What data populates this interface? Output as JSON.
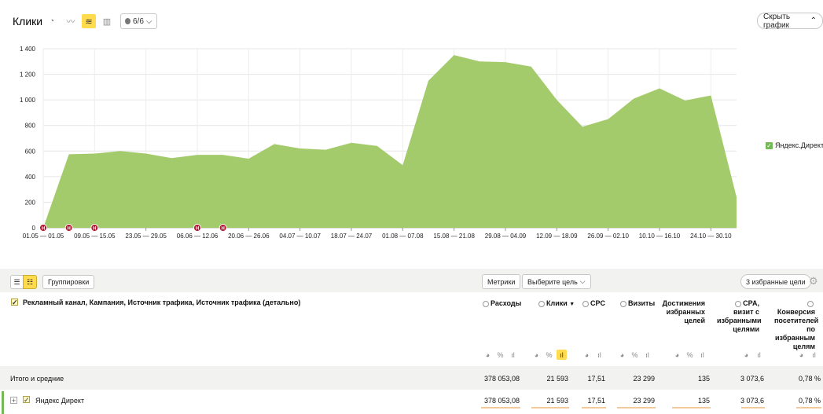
{
  "header": {
    "title": "Клики",
    "datasets_button": "6/6",
    "hide_chart_button": "Скрыть график"
  },
  "chart_data": {
    "type": "area",
    "ylim": [
      0,
      1400
    ],
    "yticks": [
      0,
      200,
      400,
      600,
      800,
      1000,
      1200,
      1400
    ],
    "ytick_labels": [
      "0",
      "200",
      "400",
      "600",
      "800",
      "1 000",
      "1 200",
      "1 400"
    ],
    "x_tick_labels": [
      "01.05 — 01.05",
      "09.05 — 15.05",
      "23.05 — 29.05",
      "06.06 — 12.06",
      "20.06 — 26.06",
      "04.07 — 10.07",
      "18.07 — 24.07",
      "01.08 — 07.08",
      "15.08 — 21.08",
      "29.08 — 04.09",
      "12.09 — 18.09",
      "26.09 — 02.10",
      "10.10 — 16.10",
      "24.10 — 30.10"
    ],
    "series": [
      {
        "name": "Яндекс.Директ",
        "color": "#a4cb6b",
        "values": [
          0,
          575,
          580,
          600,
          580,
          545,
          570,
          570,
          540,
          655,
          620,
          610,
          665,
          640,
          490,
          1150,
          1350,
          1300,
          1295,
          1260,
          1000,
          790,
          850,
          1010,
          1090,
          995,
          1035,
          240
        ]
      }
    ],
    "holiday_markers": {
      "label": "H",
      "color": "#b3132c",
      "points": [
        0,
        1,
        2,
        6,
        7
      ]
    },
    "grid": true,
    "legend": "right"
  },
  "legend": {
    "label": "Яндекс.Директ",
    "color": "#74b857"
  },
  "toolbar": {
    "groupings": "Группировки",
    "metrics": "Метрики",
    "choose_goal": "Выберите цель",
    "favorite_goals": "3 избранные цели"
  },
  "table": {
    "dimension_header": "Рекламный канал, Кампания, Источник трафика, Источник трафика (детально)",
    "columns": [
      {
        "label": "Расходы",
        "radio": true
      },
      {
        "label": "Клики",
        "radio": true,
        "sorted": true
      },
      {
        "label": "CPC",
        "radio": true
      },
      {
        "label": "Визиты",
        "radio": true
      },
      {
        "label": "Достижения избранных целей",
        "radio": false
      },
      {
        "label": "CPA, визит с избранными целями",
        "radio": true
      },
      {
        "label": "Конверсия посетителей по избранным целям",
        "radio": true
      }
    ],
    "sort_arrow": "▼",
    "totals_label": "Итого и средние",
    "totals": [
      "378 053,08",
      "21 593",
      "17,51",
      "23 299",
      "135",
      "3 073,6",
      "0,78 %"
    ],
    "rows": [
      {
        "label": "Яндекс Директ",
        "values": [
          "378 053,08",
          "21 593",
          "17,51",
          "23 299",
          "135",
          "3 073,6",
          "0,78 %"
        ]
      }
    ]
  }
}
